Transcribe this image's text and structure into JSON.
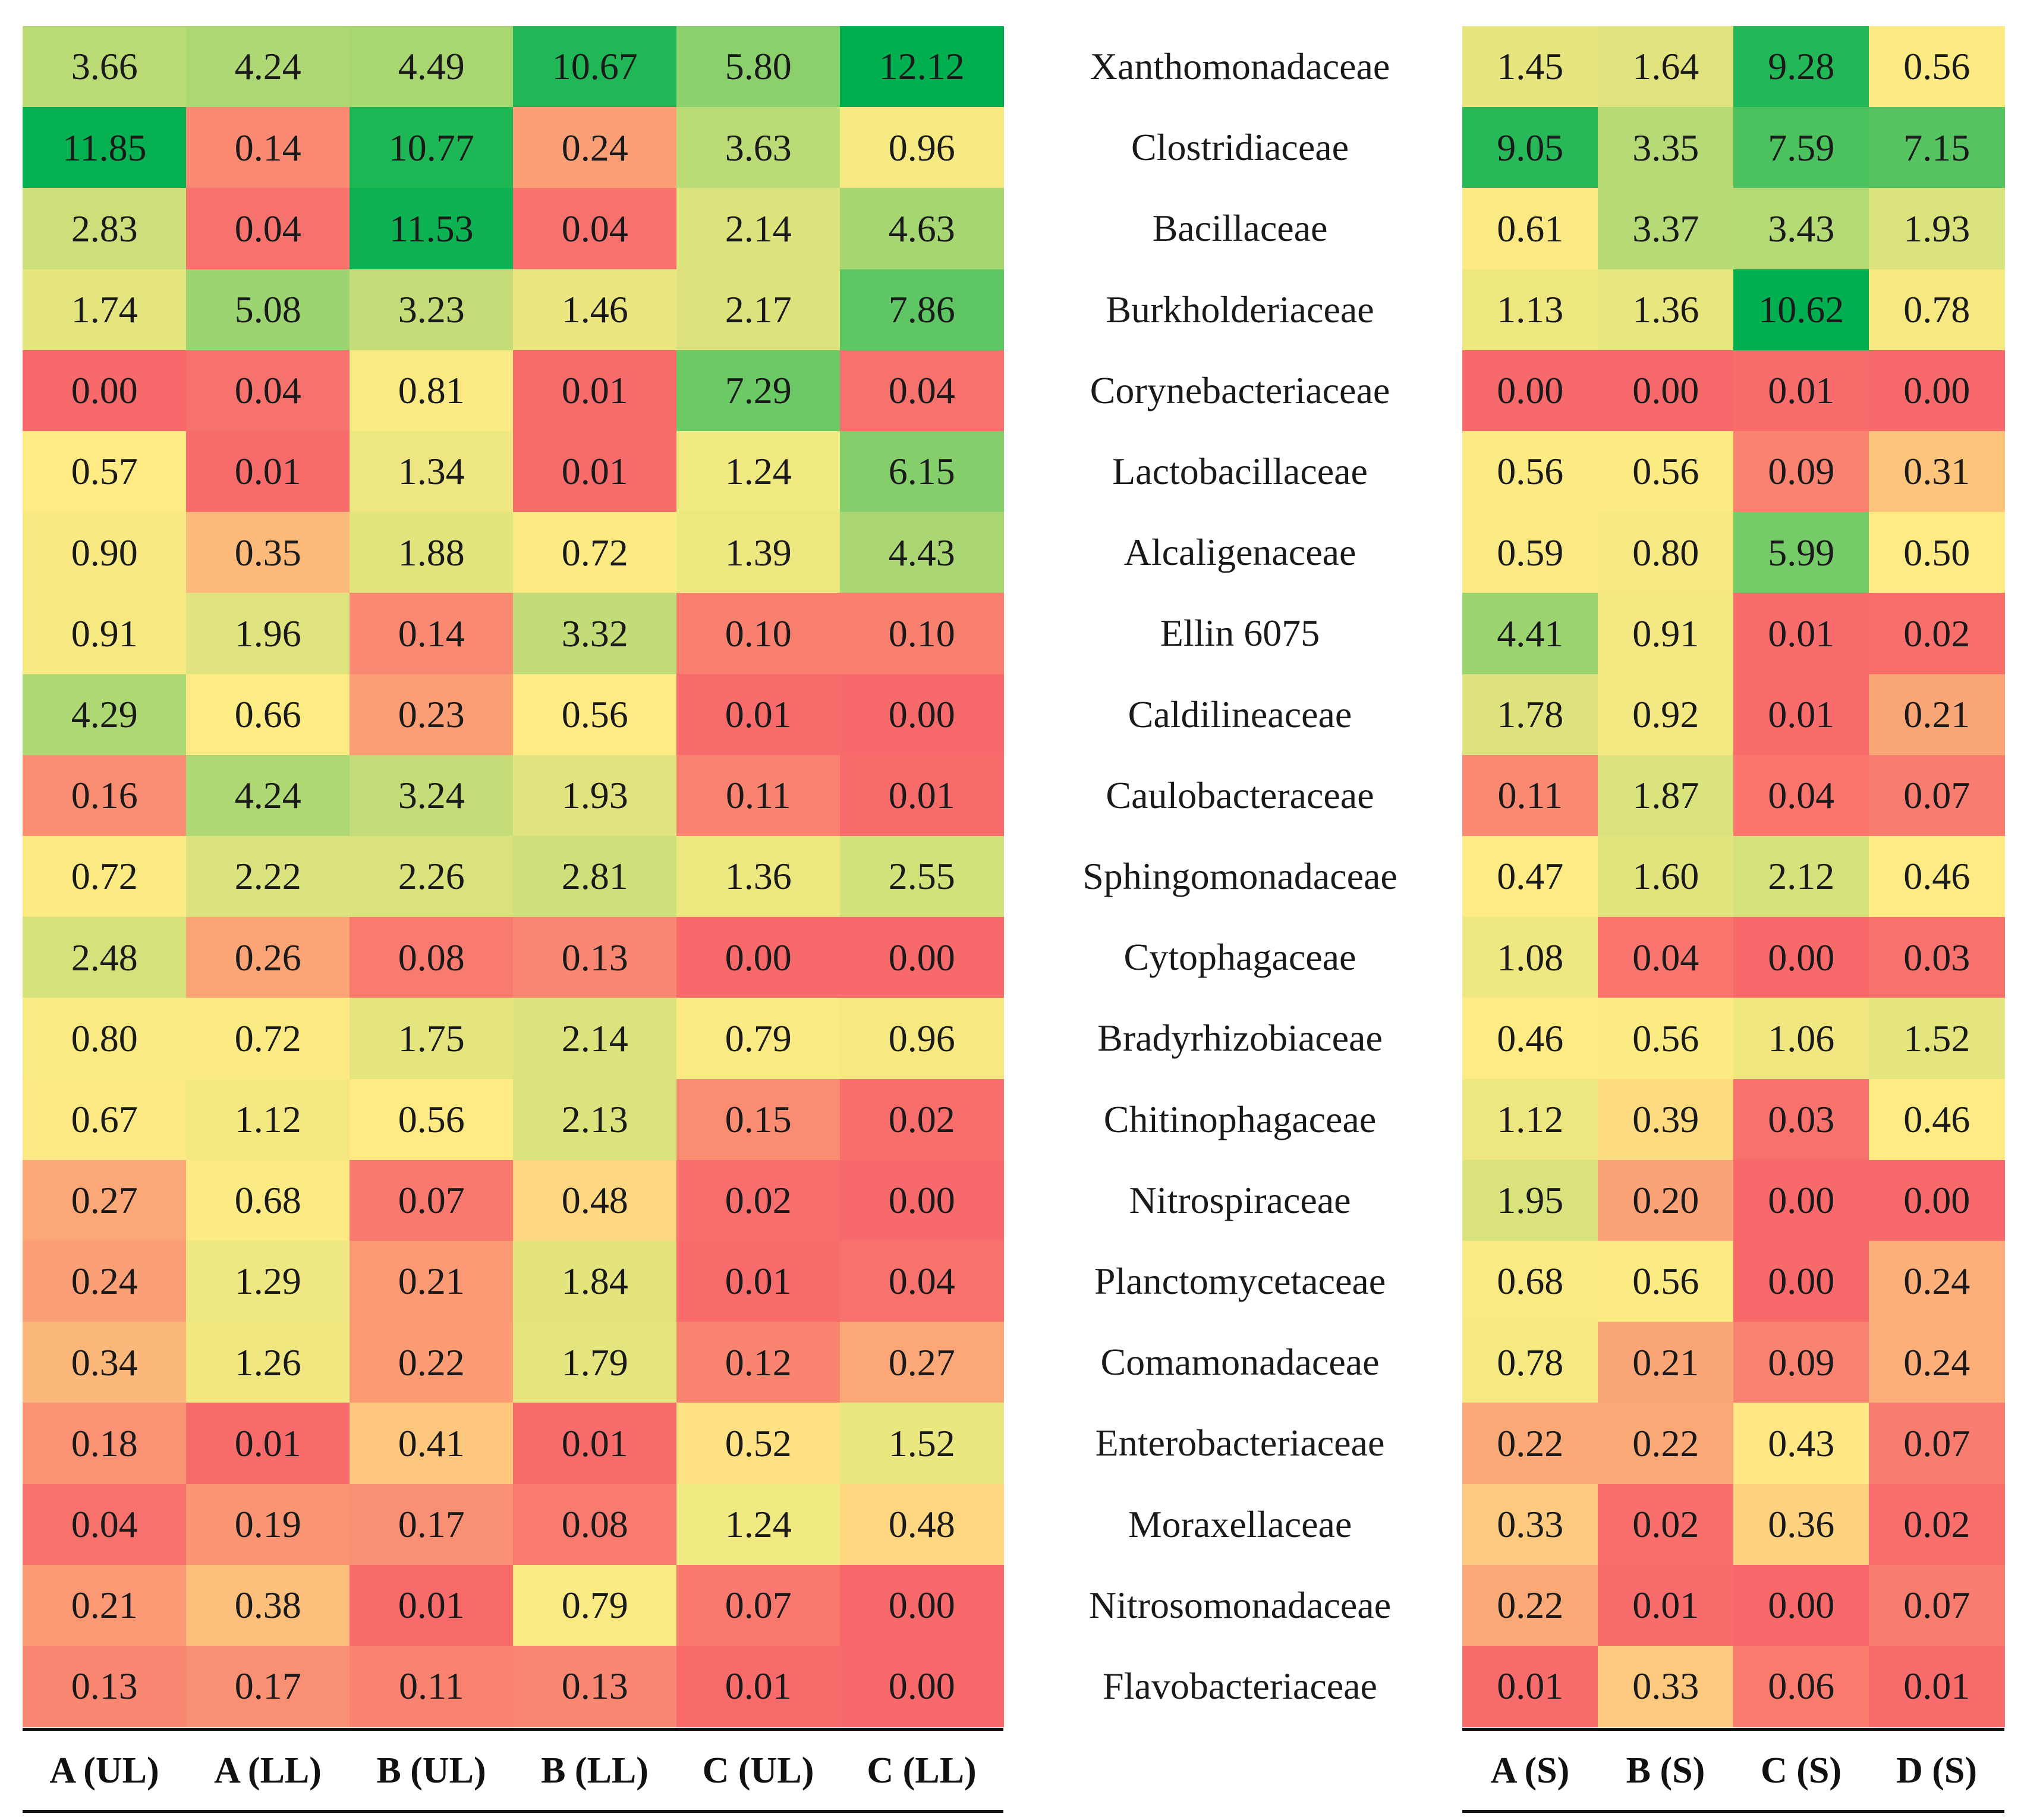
{
  "chart_data": {
    "type": "heatmap",
    "colorscale": {
      "low": "#F8696B",
      "mid": "#FFEB84",
      "high": "#00B050"
    },
    "rows": [
      "Xanthomonadaceae",
      "Clostridiaceae",
      "Bacillaceae",
      "Burkholderiaceae",
      "Corynebacteriaceae",
      "Lactobacillaceae",
      "Alcaligenaceae",
      "Ellin 6075",
      "Caldilineaceae",
      "Caulobacteraceae",
      "Sphingomonadaceae",
      "Cytophagaceae",
      "Bradyrhizobiaceae",
      "Chitinophagaceae",
      "Nitrospiraceae",
      "Planctomycetaceae",
      "Comamonadaceae",
      "Enterobacteriaceae",
      "Moraxellaceae",
      "Nitrosomonadaceae",
      "Flavobacteriaceae"
    ],
    "panels": [
      {
        "columns": [
          "A (UL)",
          "A (LL)",
          "B (UL)",
          "B (LL)",
          "C (UL)",
          "C (LL)"
        ],
        "values": [
          [
            "3.66",
            "4.24",
            "4.49",
            "10.67",
            "5.80",
            "12.12"
          ],
          [
            "11.85",
            "0.14",
            "10.77",
            "0.24",
            "3.63",
            "0.96"
          ],
          [
            "2.83",
            "0.04",
            "11.53",
            "0.04",
            "2.14",
            "4.63"
          ],
          [
            "1.74",
            "5.08",
            "3.23",
            "1.46",
            "2.17",
            "7.86"
          ],
          [
            "0.00",
            "0.04",
            "0.81",
            "0.01",
            "7.29",
            "0.04"
          ],
          [
            "0.57",
            "0.01",
            "1.34",
            "0.01",
            "1.24",
            "6.15"
          ],
          [
            "0.90",
            "0.35",
            "1.88",
            "0.72",
            "1.39",
            "4.43"
          ],
          [
            "0.91",
            "1.96",
            "0.14",
            "3.32",
            "0.10",
            "0.10"
          ],
          [
            "4.29",
            "0.66",
            "0.23",
            "0.56",
            "0.01",
            "0.00"
          ],
          [
            "0.16",
            "4.24",
            "3.24",
            "1.93",
            "0.11",
            "0.01"
          ],
          [
            "0.72",
            "2.22",
            "2.26",
            "2.81",
            "1.36",
            "2.55"
          ],
          [
            "2.48",
            "0.26",
            "0.08",
            "0.13",
            "0.00",
            "0.00"
          ],
          [
            "0.80",
            "0.72",
            "1.75",
            "2.14",
            "0.79",
            "0.96"
          ],
          [
            "0.67",
            "1.12",
            "0.56",
            "2.13",
            "0.15",
            "0.02"
          ],
          [
            "0.27",
            "0.68",
            "0.07",
            "0.48",
            "0.02",
            "0.00"
          ],
          [
            "0.24",
            "1.29",
            "0.21",
            "1.84",
            "0.01",
            "0.04"
          ],
          [
            "0.34",
            "1.26",
            "0.22",
            "1.79",
            "0.12",
            "0.27"
          ],
          [
            "0.18",
            "0.01",
            "0.41",
            "0.01",
            "0.52",
            "1.52"
          ],
          [
            "0.04",
            "0.19",
            "0.17",
            "0.08",
            "1.24",
            "0.48"
          ],
          [
            "0.21",
            "0.38",
            "0.01",
            "0.79",
            "0.07",
            "0.00"
          ],
          [
            "0.13",
            "0.17",
            "0.11",
            "0.13",
            "0.01",
            "0.00"
          ]
        ]
      },
      {
        "columns": [
          "A (S)",
          "B (S)",
          "C (S)",
          "D (S)"
        ],
        "values": [
          [
            "1.45",
            "1.64",
            "9.28",
            "0.56"
          ],
          [
            "9.05",
            "3.35",
            "7.59",
            "7.15"
          ],
          [
            "0.61",
            "3.37",
            "3.43",
            "1.93"
          ],
          [
            "1.13",
            "1.36",
            "10.62",
            "0.78"
          ],
          [
            "0.00",
            "0.00",
            "0.01",
            "0.00"
          ],
          [
            "0.56",
            "0.56",
            "0.09",
            "0.31"
          ],
          [
            "0.59",
            "0.80",
            "5.99",
            "0.50"
          ],
          [
            "4.41",
            "0.91",
            "0.01",
            "0.02"
          ],
          [
            "1.78",
            "0.92",
            "0.01",
            "0.21"
          ],
          [
            "0.11",
            "1.87",
            "0.04",
            "0.07"
          ],
          [
            "0.47",
            "1.60",
            "2.12",
            "0.46"
          ],
          [
            "1.08",
            "0.04",
            "0.00",
            "0.03"
          ],
          [
            "0.46",
            "0.56",
            "1.06",
            "1.52"
          ],
          [
            "1.12",
            "0.39",
            "0.03",
            "0.46"
          ],
          [
            "1.95",
            "0.20",
            "0.00",
            "0.00"
          ],
          [
            "0.68",
            "0.56",
            "0.00",
            "0.24"
          ],
          [
            "0.78",
            "0.21",
            "0.09",
            "0.24"
          ],
          [
            "0.22",
            "0.22",
            "0.43",
            "0.07"
          ],
          [
            "0.33",
            "0.02",
            "0.36",
            "0.02"
          ],
          [
            "0.22",
            "0.01",
            "0.00",
            "0.07"
          ],
          [
            "0.01",
            "0.33",
            "0.06",
            "0.01"
          ]
        ]
      }
    ]
  }
}
